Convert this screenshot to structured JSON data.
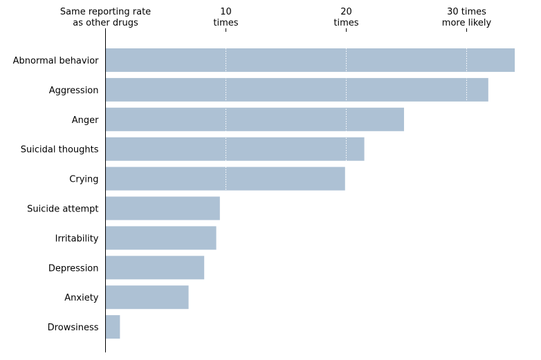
{
  "chart_data": {
    "type": "bar",
    "orientation": "horizontal",
    "categories": [
      "Abnormal behavior",
      "Aggression",
      "Anger",
      "Suicidal thoughts",
      "Crying",
      "Suicide attempt",
      "Irritability",
      "Depression",
      "Anxiety",
      "Drowsiness"
    ],
    "values": [
      34,
      31.8,
      24.8,
      21.5,
      19.9,
      9.5,
      9.2,
      8.2,
      6.9,
      1.2
    ],
    "xlim": [
      0,
      34
    ],
    "ticks": [
      {
        "value": 0,
        "label_lines": [
          "Same reporting rate",
          "as other drugs"
        ]
      },
      {
        "value": 10,
        "label_lines": [
          "10",
          "times"
        ]
      },
      {
        "value": 20,
        "label_lines": [
          "20",
          "times"
        ]
      },
      {
        "value": 30,
        "label_lines": [
          "30 times",
          "more likely"
        ]
      }
    ],
    "axis_position": "top",
    "grid": "vertical dotted white lines over bars",
    "bar_color": "#adc1d4",
    "grid_color": "#ffffff",
    "axis_color": "#000000"
  }
}
